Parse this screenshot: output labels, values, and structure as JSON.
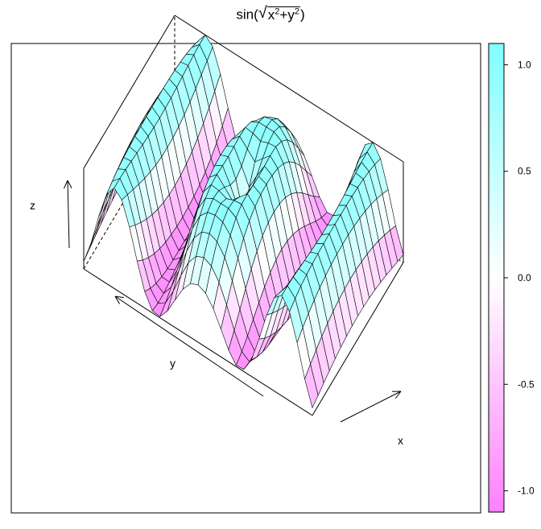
{
  "title": {
    "prefix": "sin(",
    "radicand_x": "x",
    "radicand_y": "y",
    "exp": "2",
    "plus": "+",
    "suffix": ")"
  },
  "chart_data": {
    "type": "surface",
    "title": "sin(√(x²+y²))",
    "z_function": "sin(sqrt(x^2 + y^2))",
    "x_label": "x",
    "y_label": "y",
    "z_label": "z",
    "x_range": [
      -3,
      3
    ],
    "y_range": [
      -10,
      10
    ],
    "z_range": [
      -1,
      1
    ],
    "grid_x_cells": 16,
    "grid_y_cells": 30,
    "colorkey": {
      "range": [
        -1.1,
        1.1
      ],
      "ticks": [
        -1.0,
        -0.5,
        0.0,
        0.5,
        1.0
      ],
      "tick_labels": [
        "-1.0",
        "-0.5",
        "0.0",
        "0.5",
        "1.0"
      ],
      "color_low": "#ff80ff",
      "color_mid": "#ffffff",
      "color_high": "#80ffff"
    },
    "box": true,
    "axis_arrows": true
  }
}
